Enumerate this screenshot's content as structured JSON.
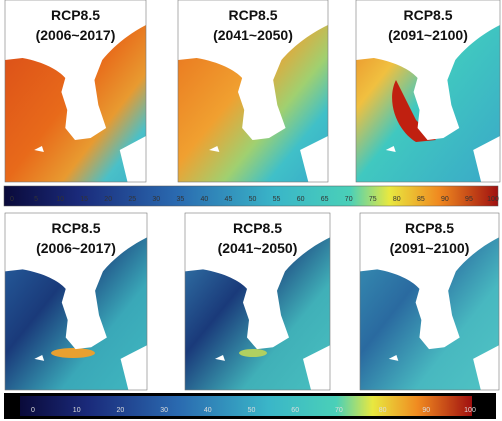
{
  "panels": [
    {
      "scenario": "RCP8.5",
      "period": "(2006~2017)"
    },
    {
      "scenario": "RCP8.5",
      "period": "(2041~2050)"
    },
    {
      "scenario": "RCP8.5",
      "period": "(2091~2100)"
    },
    {
      "scenario": "RCP8.5",
      "period": "(2006~2017)"
    },
    {
      "scenario": "RCP8.5",
      "period": "(2041~2050)"
    },
    {
      "scenario": "RCP8.5",
      "period": "(2091~2100)"
    }
  ],
  "colorbars": [
    {
      "ticks": [
        0,
        5,
        10,
        15,
        20,
        25,
        30,
        35,
        40,
        45,
        50,
        55,
        60,
        65,
        70,
        75,
        80,
        85,
        90,
        95,
        100
      ]
    },
    {
      "ticks": [
        0,
        10,
        20,
        30,
        40,
        50,
        60,
        70,
        80,
        90,
        100
      ]
    }
  ]
}
